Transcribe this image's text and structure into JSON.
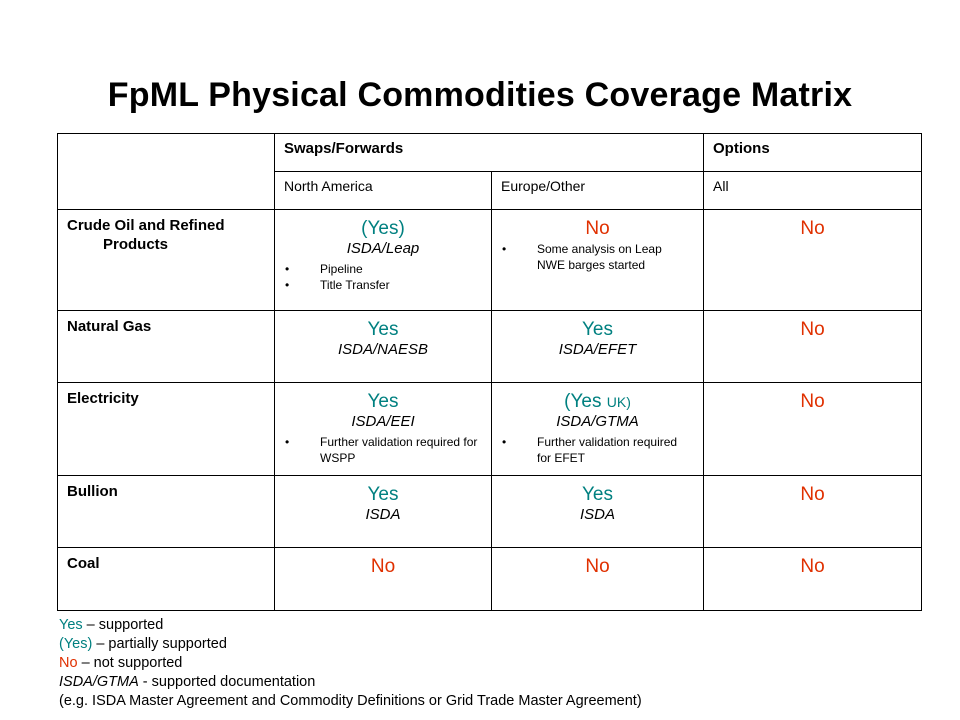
{
  "title": "FpML Physical Commodities Coverage Matrix",
  "header": {
    "swaps_forwards": "Swaps/Forwards",
    "options": "Options",
    "north_america": "North America",
    "europe_other": "Europe/Other",
    "all": "All"
  },
  "rows": [
    {
      "label_line1": "Crude Oil and Refined",
      "label_line2": "Products",
      "na": {
        "status": "(Yes)",
        "doc": "ISDA/Leap",
        "notes": [
          "Pipeline",
          "Title Transfer"
        ]
      },
      "eu": {
        "status": "No",
        "notes": [
          "Some analysis on Leap NWE barges started"
        ]
      },
      "opt": {
        "status": "No"
      }
    },
    {
      "label_line1": "Natural Gas",
      "na": {
        "status": "Yes",
        "doc": "ISDA/NAESB"
      },
      "eu": {
        "status": "Yes",
        "doc": "ISDA/EFET"
      },
      "opt": {
        "status": "No"
      }
    },
    {
      "label_line1": "Electricity",
      "na": {
        "status": "Yes",
        "doc": "ISDA/EEI",
        "notes": [
          "Further validation required for WSPP"
        ]
      },
      "eu": {
        "status": "(Yes",
        "status_suffix": "UK)",
        "doc": "ISDA/GTMA",
        "notes": [
          "Further validation required for EFET"
        ]
      },
      "opt": {
        "status": "No"
      }
    },
    {
      "label_line1": "Bullion",
      "na": {
        "status": "Yes",
        "doc": "ISDA"
      },
      "eu": {
        "status": "Yes",
        "doc": "ISDA"
      },
      "opt": {
        "status": "No"
      }
    },
    {
      "label_line1": "Coal",
      "na": {
        "status": "No"
      },
      "eu": {
        "status": "No"
      },
      "opt": {
        "status": "No"
      }
    }
  ],
  "legend": {
    "yes": "Yes",
    "yes_text": " – supported",
    "partial": "(Yes)",
    "partial_text": " – partially supported",
    "no": "No",
    "no_text": " – not supported",
    "doc": "ISDA/GTMA",
    "doc_text": "  - supported documentation",
    "example": "(e.g. ISDA Master Agreement and   Commodity Definitions or Grid Trade Master Agreement)"
  },
  "colors": {
    "supported": "#008080",
    "not_supported": "#e03000"
  },
  "bullet_icon": "•"
}
